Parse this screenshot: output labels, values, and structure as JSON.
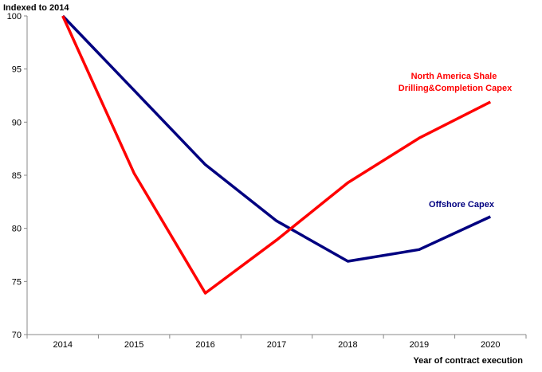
{
  "chart_data": {
    "type": "line",
    "title": "",
    "ylabel": "Indexed to 2014",
    "xlabel": "Year of contract execution",
    "categories": [
      "2014",
      "2015",
      "2016",
      "2017",
      "2018",
      "2019",
      "2020"
    ],
    "yticks": [
      "70",
      "75",
      "80",
      "85",
      "90",
      "95",
      "100"
    ],
    "ylim": [
      70,
      100
    ],
    "grid": false,
    "series": [
      {
        "label_lines": [
          "North America Shale",
          "Drilling&Completion Capex"
        ],
        "color": "#ff0000",
        "values": [
          100,
          85.2,
          73.9,
          78.9,
          84.3,
          88.5,
          91.9
        ]
      },
      {
        "label_lines": [
          "Offshore Capex"
        ],
        "color": "#000080",
        "values": [
          100,
          93.0,
          86.0,
          80.7,
          76.9,
          78.0,
          81.1
        ]
      }
    ]
  }
}
